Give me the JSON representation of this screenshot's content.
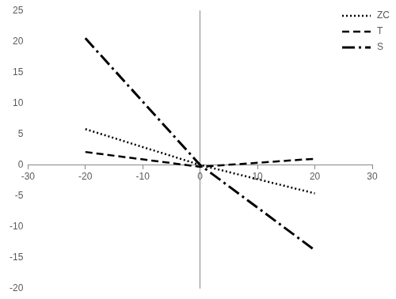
{
  "chart_data": {
    "type": "line",
    "x": [
      -20,
      0,
      20
    ],
    "series": [
      {
        "name": "ZC",
        "color": "#000000",
        "line_style": "dotted",
        "values": [
          5.8,
          0,
          -4.6
        ]
      },
      {
        "name": "T",
        "color": "#000000",
        "line_style": "dashed",
        "values": [
          2.1,
          -0.3,
          1.0
        ]
      },
      {
        "name": "S",
        "color": "#000000",
        "line_style": "dashdot",
        "values": [
          20.5,
          0,
          -13.8
        ]
      }
    ],
    "xlim": [
      -30,
      30
    ],
    "xticks": [
      -30,
      -20,
      -10,
      0,
      10,
      20,
      30
    ],
    "ylim": [
      -20,
      25
    ],
    "yticks": [
      -20,
      -15,
      -10,
      -5,
      0,
      5,
      10,
      15,
      20,
      25
    ],
    "grid": false,
    "legend": "top-right"
  }
}
